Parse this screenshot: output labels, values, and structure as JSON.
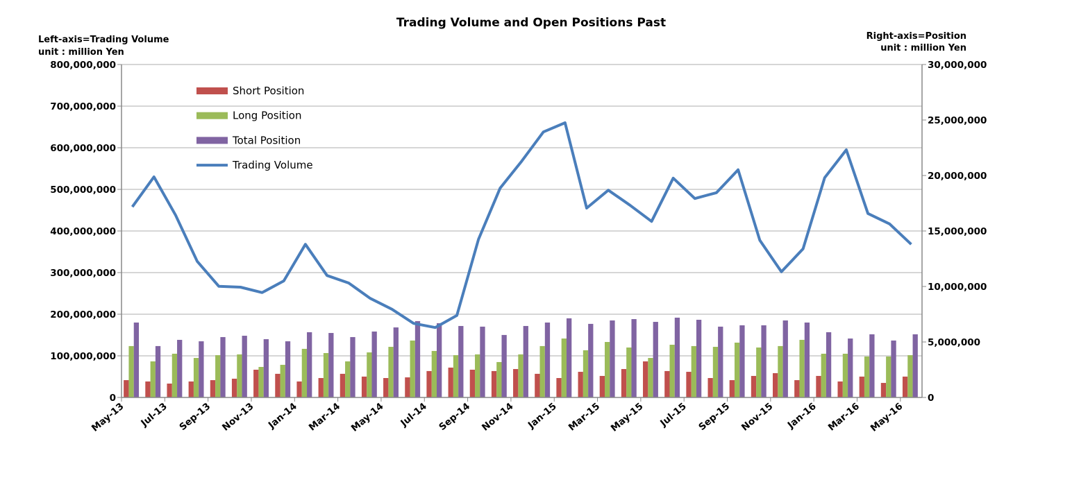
{
  "chart_data": {
    "type": "bar",
    "title": "Trading Volume and Open Positions Past",
    "left_axis_note": "Left-axis=Trading Volume",
    "left_axis_unit": "unit : million Yen",
    "right_axis_note": "Right-axis=Position",
    "right_axis_unit": "unit : million Yen",
    "left_ylim": [
      0,
      800000000
    ],
    "right_ylim": [
      0,
      30000000
    ],
    "left_ticks": [
      "0",
      "100,000,000",
      "200,000,000",
      "300,000,000",
      "400,000,000",
      "500,000,000",
      "600,000,000",
      "700,000,000",
      "800,000,000"
    ],
    "right_ticks": [
      "0",
      "5,000,000",
      "10,000,000",
      "15,000,000",
      "20,000,000",
      "25,000,000",
      "30,000,000"
    ],
    "grid": true,
    "legend_placement": "top-left",
    "categories": [
      "May-13",
      "Jun-13",
      "Jul-13",
      "Aug-13",
      "Sep-13",
      "Oct-13",
      "Nov-13",
      "Dec-13",
      "Jan-14",
      "Feb-14",
      "Mar-14",
      "Apr-14",
      "May-14",
      "Jun-14",
      "Jul-14",
      "Aug-14",
      "Sep-14",
      "Oct-14",
      "Nov-14",
      "Dec-14",
      "Jan-15",
      "Feb-15",
      "Mar-15",
      "Apr-15",
      "May-15",
      "Jun-15",
      "Jul-15",
      "Aug-15",
      "Sep-15",
      "Oct-15",
      "Nov-15",
      "Dec-15",
      "Jan-16",
      "Feb-16",
      "Mar-16",
      "Apr-16",
      "May-16"
    ],
    "x_tick_labels": [
      "May-13",
      "Jul-13",
      "Sep-13",
      "Nov-13",
      "Jan-14",
      "Mar-14",
      "May-14",
      "Jul-14",
      "Sep-14",
      "Nov-14",
      "Jan-15",
      "Mar-15",
      "May-15",
      "Jul-15",
      "Sep-15",
      "Nov-15",
      "Jan-16",
      "Mar-16",
      "May-16"
    ],
    "series": [
      {
        "name": "Short Position",
        "type": "bar",
        "axis": "right",
        "color": "#C0504D",
        "values": [
          1560000,
          1440000,
          1250000,
          1440000,
          1560000,
          1690000,
          2500000,
          2130000,
          1440000,
          1750000,
          2130000,
          1880000,
          1750000,
          1810000,
          2380000,
          2690000,
          2500000,
          2380000,
          2560000,
          2130000,
          1750000,
          2310000,
          1940000,
          2560000,
          3250000,
          2380000,
          2310000,
          1750000,
          1560000,
          1940000,
          2190000,
          1560000,
          1940000,
          1440000,
          1880000,
          1310000,
          1880000
        ]
      },
      {
        "name": "Long Position",
        "type": "bar",
        "axis": "right",
        "color": "#9BBB59",
        "values": [
          4630000,
          3250000,
          3940000,
          3560000,
          3810000,
          3880000,
          2750000,
          2940000,
          4380000,
          4000000,
          3250000,
          4060000,
          4560000,
          5130000,
          4190000,
          3810000,
          3880000,
          3190000,
          3880000,
          4630000,
          5310000,
          4250000,
          5000000,
          4500000,
          3560000,
          4750000,
          4630000,
          4560000,
          4940000,
          4500000,
          4630000,
          5190000,
          3940000,
          3940000,
          3690000,
          3690000,
          3810000
        ]
      },
      {
        "name": "Total Position",
        "type": "bar",
        "axis": "right",
        "color": "#8064A2",
        "values": [
          6750000,
          4630000,
          5190000,
          5060000,
          5440000,
          5560000,
          5250000,
          5060000,
          5880000,
          5810000,
          5440000,
          5940000,
          6310000,
          6880000,
          6690000,
          6440000,
          6380000,
          5630000,
          6440000,
          6750000,
          7130000,
          6630000,
          6940000,
          7060000,
          6810000,
          7190000,
          7000000,
          6380000,
          6500000,
          6500000,
          6940000,
          6750000,
          5880000,
          5310000,
          5690000,
          5130000,
          5690000
        ]
      },
      {
        "name": "Trading Volume",
        "type": "line",
        "axis": "left",
        "color": "#4A7EBB",
        "values": [
          458000000,
          530000000,
          438000000,
          327000000,
          267000000,
          265000000,
          252000000,
          280000000,
          368000000,
          293000000,
          275000000,
          238000000,
          212000000,
          178000000,
          168000000,
          197000000,
          380000000,
          503000000,
          568000000,
          638000000,
          660000000,
          455000000,
          498000000,
          462000000,
          423000000,
          527000000,
          478000000,
          492000000,
          547000000,
          378000000,
          302000000,
          357000000,
          528000000,
          595000000,
          442000000,
          417000000,
          368000000
        ]
      }
    ]
  }
}
